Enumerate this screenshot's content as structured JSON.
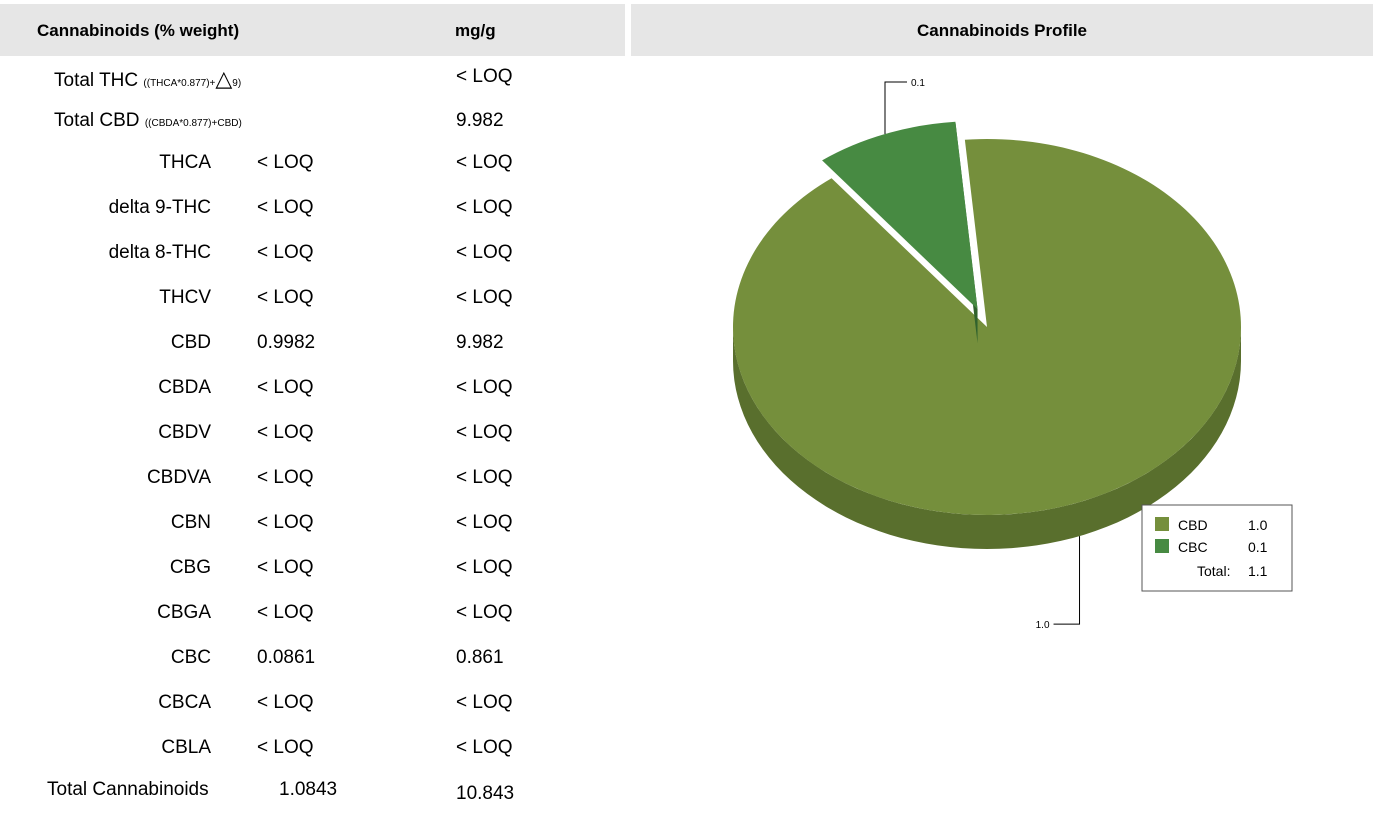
{
  "table": {
    "headers": {
      "name": "Cannabinoids (% weight)",
      "mg": "mg/g"
    },
    "total_thc": {
      "label": "Total THC",
      "formula_a": "((THCA*0.877)+",
      "triangle": "△",
      "formula_b": "9)",
      "mg": "< LOQ"
    },
    "total_cbd": {
      "label": "Total CBD",
      "formula": "((CBDA*0.877)+CBD)",
      "mg": "9.982"
    },
    "rows": [
      {
        "name": "THCA",
        "pct": "< LOQ",
        "mg": "< LOQ"
      },
      {
        "name": "delta 9-THC",
        "pct": "< LOQ",
        "mg": "< LOQ"
      },
      {
        "name": "delta 8-THC",
        "pct": "< LOQ",
        "mg": "< LOQ"
      },
      {
        "name": "THCV",
        "pct": "< LOQ",
        "mg": "< LOQ"
      },
      {
        "name": "CBD",
        "pct": "0.9982",
        "mg": "9.982"
      },
      {
        "name": "CBDA",
        "pct": "< LOQ",
        "mg": "< LOQ"
      },
      {
        "name": "CBDV",
        "pct": "< LOQ",
        "mg": "< LOQ"
      },
      {
        "name": "CBDVA",
        "pct": "< LOQ",
        "mg": "< LOQ"
      },
      {
        "name": "CBN",
        "pct": "< LOQ",
        "mg": "< LOQ"
      },
      {
        "name": "CBG",
        "pct": "< LOQ",
        "mg": "< LOQ"
      },
      {
        "name": "CBGA",
        "pct": "< LOQ",
        "mg": "< LOQ"
      },
      {
        "name": "CBC",
        "pct": "0.0861",
        "mg": "0.861"
      },
      {
        "name": "CBCA",
        "pct": "< LOQ",
        "mg": "< LOQ"
      },
      {
        "name": "CBLA",
        "pct": "< LOQ",
        "mg": "< LOQ"
      }
    ],
    "total": {
      "label": "Total Cannabinoids",
      "pct": "1.0843",
      "mg": "10.843"
    }
  },
  "chart": {
    "title": "Cannabinoids Profile",
    "colors": {
      "cbd_top": "#758f3c",
      "cbd_side": "#596f2d",
      "cbc_top": "#478a42",
      "cbc_side": "#31622d"
    }
  },
  "chart_data": {
    "type": "pie",
    "title": "Cannabinoids Profile",
    "categories": [
      "CBD",
      "CBC"
    ],
    "values": [
      1.0,
      0.1
    ],
    "value_labels": [
      "1.0",
      "0.1"
    ],
    "legend": {
      "placement": "bottom-right",
      "entries": [
        {
          "name": "CBD",
          "value": "1.0"
        },
        {
          "name": "CBC",
          "value": "0.1"
        }
      ],
      "total_label": "Total:",
      "total_value": "1.1"
    }
  }
}
